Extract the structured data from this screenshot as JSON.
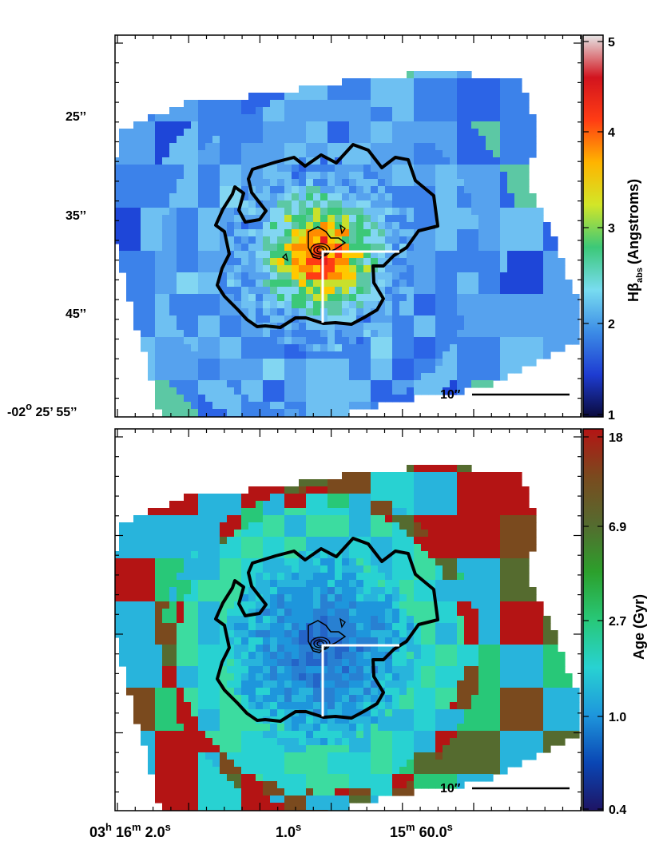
{
  "chart_data": [
    {
      "type": "heatmap",
      "quantity": "Hβ_abs",
      "colorbar": {
        "label": "Hβ",
        "label_sub": "abs",
        "label_unit": "(Angstroms)",
        "ticks": [
          "1",
          "2",
          "3",
          "4",
          "5"
        ],
        "range": [
          1,
          5
        ],
        "colormap": [
          "#0a0a3c",
          "#1e3cd2",
          "#3c8ce6",
          "#78dcf0",
          "#3cc878",
          "#d2e628",
          "#ffb400",
          "#ff3c14",
          "#d2141e",
          "#e6e6e6"
        ]
      },
      "y_tick_labels": [
        "25’’",
        "35’’",
        "45’’",
        "-02° 25’ 55’’"
      ],
      "y_label_parts": [
        "-02",
        "o",
        " 25’ 55’’"
      ],
      "scale_bar": "10″",
      "central_value": 4.6,
      "outer_value": 1.8
    },
    {
      "type": "heatmap",
      "quantity": "Age",
      "colorbar": {
        "label": "Age (Gyr)",
        "ticks": [
          "0.4",
          "1.0",
          "2.7",
          "6.9",
          "18"
        ],
        "colormap": [
          "#1e1464",
          "#0a46b4",
          "#1e96dc",
          "#28d2d2",
          "#28c878",
          "#2ca02c",
          "#556b2f",
          "#7a4a1e",
          "#b41414"
        ]
      },
      "x_tick_labels": [
        {
          "parts": [
            "03",
            "h",
            " 16",
            "m",
            " 2.0",
            "s"
          ]
        },
        {
          "parts": [
            "1.0",
            "s"
          ]
        },
        {
          "parts": [
            "15",
            "m",
            " 60.0",
            "s"
          ]
        }
      ],
      "scale_bar": "10″"
    }
  ]
}
